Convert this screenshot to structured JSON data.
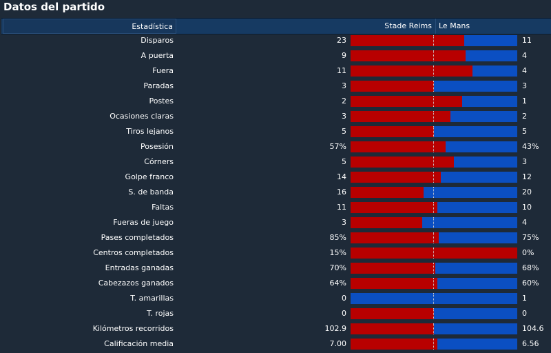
{
  "title": "Datos del partido",
  "header": {
    "stat_label": "Estadística",
    "home_team": "Stade Reims",
    "away_team": "Le Mans"
  },
  "colors": {
    "home": "#b80000",
    "away": "#0b4fc2"
  },
  "rows": [
    {
      "label": "Disparos",
      "home": "23",
      "away": "11",
      "home_share": 0.68
    },
    {
      "label": "A puerta",
      "home": "9",
      "away": "4",
      "home_share": 0.69
    },
    {
      "label": "Fuera",
      "home": "11",
      "away": "4",
      "home_share": 0.73
    },
    {
      "label": "Paradas",
      "home": "3",
      "away": "3",
      "home_share": 0.5
    },
    {
      "label": "Postes",
      "home": "2",
      "away": "1",
      "home_share": 0.67
    },
    {
      "label": "Ocasiones claras",
      "home": "3",
      "away": "2",
      "home_share": 0.6
    },
    {
      "label": "Tiros lejanos",
      "home": "5",
      "away": "5",
      "home_share": 0.5
    },
    {
      "label": "Posesión",
      "home": "57%",
      "away": "43%",
      "home_share": 0.57
    },
    {
      "label": "Córners",
      "home": "5",
      "away": "3",
      "home_share": 0.62
    },
    {
      "label": "Golpe franco",
      "home": "14",
      "away": "12",
      "home_share": 0.54
    },
    {
      "label": "S. de banda",
      "home": "16",
      "away": "20",
      "home_share": 0.44
    },
    {
      "label": "Faltas",
      "home": "11",
      "away": "10",
      "home_share": 0.52
    },
    {
      "label": "Fueras de juego",
      "home": "3",
      "away": "4",
      "home_share": 0.43
    },
    {
      "label": "Pases completados",
      "home": "85%",
      "away": "75%",
      "home_share": 0.53
    },
    {
      "label": "Centros completados",
      "home": "15%",
      "away": "0%",
      "home_share": 1.0
    },
    {
      "label": "Entradas ganadas",
      "home": "70%",
      "away": "68%",
      "home_share": 0.51
    },
    {
      "label": "Cabezazos ganados",
      "home": "64%",
      "away": "60%",
      "home_share": 0.52
    },
    {
      "label": "T. amarillas",
      "home": "0",
      "away": "1",
      "home_share": 0.0
    },
    {
      "label": "T. rojas",
      "home": "0",
      "away": "0",
      "home_share": 0.5
    },
    {
      "label": "Kilómetros recorridos",
      "home": "102.9",
      "away": "104.6",
      "home_share": 0.5
    },
    {
      "label": "Calificación media",
      "home": "7.00",
      "away": "6.56",
      "home_share": 0.52
    }
  ]
}
